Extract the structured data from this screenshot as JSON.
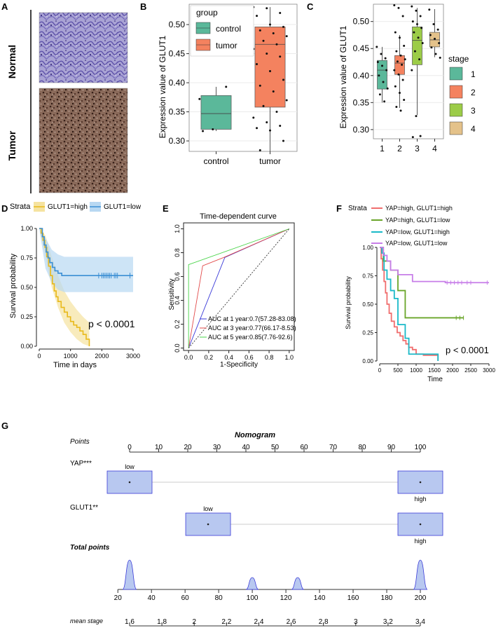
{
  "panel_letters": {
    "a": "A",
    "b": "B",
    "c": "C",
    "d": "D",
    "e": "E",
    "f": "F",
    "g": "G"
  },
  "panel_a": {
    "row_labels": [
      "Normal",
      "Tumor"
    ],
    "colors": {
      "normal": "#8a82c0",
      "tumor": "#6e5148"
    }
  },
  "chart_data": [
    {
      "id": "B",
      "type": "box",
      "ylabel": "Expression value of GLUT1",
      "categories": [
        "control",
        "tumor"
      ],
      "yticks": [
        0.3,
        0.35,
        0.4,
        0.45,
        0.5
      ],
      "ylim": [
        0.282,
        0.535
      ],
      "legend": {
        "title": "group",
        "entries": [
          "control",
          "tumor"
        ],
        "colors": [
          "#5bb89a",
          "#f4825f"
        ]
      },
      "boxes": [
        {
          "name": "control",
          "min": 0.317,
          "q1": 0.32,
          "median": 0.347,
          "q3": 0.378,
          "max": 0.393
        },
        {
          "name": "tumor",
          "min": 0.282,
          "q1": 0.358,
          "median": 0.466,
          "q3": 0.496,
          "max": 0.53
        }
      ],
      "points": {
        "control": [
          0.372,
          0.32,
          0.393,
          0.317
        ],
        "tumor": [
          0.53,
          0.528,
          0.52,
          0.515,
          0.5,
          0.496,
          0.49,
          0.485,
          0.48,
          0.472,
          0.466,
          0.458,
          0.45,
          0.445,
          0.432,
          0.42,
          0.405,
          0.395,
          0.385,
          0.37,
          0.36,
          0.35,
          0.34,
          0.332,
          0.326,
          0.322,
          0.318,
          0.3,
          0.284
        ]
      }
    },
    {
      "id": "C",
      "type": "box",
      "ylabel": "Expression value of GLUT1",
      "categories": [
        "1",
        "2",
        "3",
        "4"
      ],
      "yticks": [
        0.3,
        0.35,
        0.4,
        0.45,
        0.5
      ],
      "ylim": [
        0.283,
        0.532
      ],
      "legend": {
        "title": "stage",
        "entries": [
          "1",
          "2",
          "3",
          "4"
        ],
        "colors": [
          "#5bb89a",
          "#f4825f",
          "#9ccc48",
          "#e4c28a"
        ]
      },
      "boxes": [
        {
          "name": "1",
          "min": 0.35,
          "q1": 0.375,
          "median": 0.41,
          "q3": 0.428,
          "max": 0.453
        },
        {
          "name": "2",
          "min": 0.34,
          "q1": 0.402,
          "median": 0.423,
          "q3": 0.437,
          "max": 0.475
        },
        {
          "name": "3",
          "min": 0.327,
          "q1": 0.42,
          "median": 0.465,
          "q3": 0.49,
          "max": 0.525
        },
        {
          "name": "4",
          "min": 0.434,
          "q1": 0.453,
          "median": 0.466,
          "q3": 0.48,
          "max": 0.523
        }
      ],
      "points": {
        "1": [
          0.453,
          0.44,
          0.432,
          0.425,
          0.418,
          0.41,
          0.4,
          0.388,
          0.376,
          0.365,
          0.352
        ],
        "2": [
          0.53,
          0.525,
          0.51,
          0.48,
          0.47,
          0.455,
          0.445,
          0.437,
          0.43,
          0.426,
          0.42,
          0.41,
          0.402,
          0.392,
          0.38,
          0.368,
          0.355,
          0.342,
          0.335
        ],
        "3": [
          0.528,
          0.52,
          0.51,
          0.5,
          0.495,
          0.488,
          0.48,
          0.47,
          0.46,
          0.445,
          0.43,
          0.41,
          0.325,
          0.288,
          0.286
        ],
        "4": [
          0.522,
          0.495,
          0.485,
          0.475,
          0.468,
          0.46,
          0.452,
          0.44,
          0.433
        ]
      }
    },
    {
      "id": "D",
      "type": "line",
      "title": "",
      "xlabel": "Time in days",
      "ylabel": "Survival probability",
      "xlim": [
        0,
        3000
      ],
      "ylim": [
        0,
        1
      ],
      "xticks": [
        0,
        1000,
        2000,
        3000
      ],
      "yticks": [
        0.0,
        0.25,
        0.5,
        0.75,
        1.0
      ],
      "ytick_labels": [
        "0.00",
        "0.25",
        "0.50",
        "0.75",
        "1.00"
      ],
      "legend": {
        "title": "Strata",
        "entries": [
          "GLUT1=high",
          "GLUT1=low"
        ],
        "colors": [
          "#e8b91a",
          "#3b8fd4"
        ],
        "fill": [
          "#f5e3a0",
          "#b8d8f2"
        ]
      },
      "annotation": "p < 0.0001",
      "series": [
        {
          "name": "GLUT1=high",
          "x": [
            0,
            60,
            120,
            180,
            240,
            300,
            360,
            420,
            480,
            540,
            600,
            700,
            800,
            900,
            1000,
            1100,
            1200,
            1300,
            1400,
            1500,
            1600
          ],
          "y": [
            1.0,
            0.96,
            0.9,
            0.84,
            0.76,
            0.68,
            0.6,
            0.53,
            0.47,
            0.42,
            0.38,
            0.33,
            0.29,
            0.25,
            0.21,
            0.18,
            0.16,
            0.13,
            0.1,
            0.06,
            0.0
          ]
        },
        {
          "name": "GLUT1=low",
          "x": [
            0,
            100,
            160,
            220,
            280,
            340,
            420,
            500,
            600,
            720,
            3000
          ],
          "y": [
            1.0,
            0.93,
            0.86,
            0.8,
            0.75,
            0.71,
            0.67,
            0.64,
            0.62,
            0.6,
            0.6
          ]
        }
      ],
      "bands": [
        {
          "x": [
            0,
            200,
            400,
            600,
            800,
            1000,
            1200,
            1400,
            1600
          ],
          "lo": [
            1.0,
            0.76,
            0.5,
            0.33,
            0.2,
            0.12,
            0.06,
            0.02,
            0.0
          ],
          "hi": [
            1.0,
            0.94,
            0.76,
            0.6,
            0.47,
            0.38,
            0.31,
            0.25,
            0.2
          ]
        },
        {
          "x": [
            0,
            200,
            400,
            600,
            800,
            3000
          ],
          "lo": [
            1.0,
            0.66,
            0.54,
            0.48,
            0.46,
            0.46
          ],
          "hi": [
            1.0,
            0.92,
            0.82,
            0.78,
            0.76,
            0.76
          ]
        }
      ],
      "censor_x": [
        1900,
        2000,
        2050,
        2100,
        2150,
        2200,
        2250,
        2300,
        2400,
        2450,
        2500,
        2900
      ]
    },
    {
      "id": "E",
      "type": "line",
      "title": "Time-dependent curve",
      "xlabel": "1-Specificity",
      "ylabel": "Sensitivity",
      "xlim": [
        -0.05,
        1.05
      ],
      "ylim": [
        -0.02,
        1.05
      ],
      "xticks": [
        0.0,
        0.2,
        0.4,
        0.6,
        0.8,
        1.0
      ],
      "yticks": [
        0.0,
        0.2,
        0.4,
        0.6,
        0.8,
        1.0
      ],
      "legend": {
        "entries": [
          "AUC at 1 year:0.7(57.28-83.08)",
          "AUC at 3 year:0.77(66.17-8.53)",
          "AUC at 5 year:0.85(7.76-92.6)"
        ],
        "colors": [
          "#3a3ad8",
          "#e24a4a",
          "#4ad44a"
        ]
      },
      "series": [
        {
          "name": "AUC at 1 year",
          "x": [
            0,
            0.36,
            1.0
          ],
          "y": [
            0,
            0.76,
            1.0
          ]
        },
        {
          "name": "AUC at 3 year",
          "x": [
            0,
            0.14,
            0.35,
            1.0
          ],
          "y": [
            0,
            0.69,
            0.76,
            1.0
          ]
        },
        {
          "name": "AUC at 5 year",
          "x": [
            0,
            0,
            1.0
          ],
          "y": [
            0,
            0.7,
            1.0
          ]
        },
        {
          "name": "diagonal",
          "x": [
            0,
            1
          ],
          "y": [
            0,
            1
          ]
        }
      ]
    },
    {
      "id": "F",
      "type": "line",
      "xlabel": "Time",
      "ylabel": "Survival probability",
      "xlim": [
        0,
        3000
      ],
      "ylim": [
        0,
        1
      ],
      "xticks": [
        0,
        500,
        1000,
        1500,
        2000,
        2500,
        3000
      ],
      "yticks": [
        0.0,
        0.25,
        0.5,
        0.75,
        1.0
      ],
      "ytick_labels": [
        "0.00",
        "0.25",
        "0.50",
        "0.75",
        "1.00"
      ],
      "legend": {
        "title": "Strata",
        "entries": [
          "YAP=high, GLUT1=high",
          "YAP=high, GLUT1=low",
          "YAP=low, GLUT1=high",
          "YAP=low, GLUT1=low"
        ],
        "colors": [
          "#f06e6e",
          "#6aa52a",
          "#1ab9c8",
          "#c77ee8"
        ]
      },
      "annotation": "p < 0.0001",
      "series": [
        {
          "name": "YAP=high, GLUT1=high",
          "x": [
            0,
            40,
            80,
            120,
            160,
            200,
            260,
            320,
            400,
            480,
            560,
            640,
            720,
            800,
            900,
            1000,
            1200,
            1400,
            1600
          ],
          "y": [
            1.0,
            0.9,
            0.8,
            0.7,
            0.6,
            0.5,
            0.42,
            0.35,
            0.3,
            0.25,
            0.22,
            0.18,
            0.15,
            0.12,
            0.1,
            0.06,
            0.05,
            0.05,
            0.0
          ]
        },
        {
          "name": "YAP=high, GLUT1=low",
          "x": [
            0,
            100,
            200,
            300,
            400,
            500,
            650,
            700,
            800,
            2300
          ],
          "y": [
            1.0,
            0.88,
            0.88,
            0.8,
            0.8,
            0.62,
            0.62,
            0.38,
            0.38,
            0.38
          ]
        },
        {
          "name": "YAP=low, GLUT1=high",
          "x": [
            0,
            60,
            120,
            200,
            300,
            400,
            500,
            700,
            800,
            1500,
            1600
          ],
          "y": [
            1.0,
            0.95,
            0.8,
            0.72,
            0.62,
            0.55,
            0.32,
            0.2,
            0.06,
            0.06,
            0.0
          ]
        },
        {
          "name": "YAP=low, GLUT1=low",
          "x": [
            0,
            100,
            200,
            300,
            500,
            700,
            900,
            1800,
            3000
          ],
          "y": [
            1.0,
            0.93,
            0.88,
            0.8,
            0.76,
            0.76,
            0.7,
            0.69,
            0.69
          ]
        }
      ]
    },
    {
      "id": "G",
      "type": "nomogram",
      "title": "Nomogram",
      "rows": {
        "points": "Points",
        "yap": "YAP***",
        "glut1": "GLUT1**",
        "total": "Total points",
        "mean_stage": "mean stage"
      },
      "points_ticks": [
        0,
        10,
        20,
        30,
        40,
        50,
        60,
        70,
        80,
        90,
        100
      ],
      "points_tick_labels": [
        "0",
        "10",
        "20",
        "30",
        "40",
        "50",
        "60",
        "70",
        "80",
        "90",
        "100"
      ],
      "yap_levels": [
        {
          "label": "low",
          "points": 0
        },
        {
          "label": "high",
          "points": 100
        }
      ],
      "glut1_levels": [
        {
          "label": "low",
          "points": 27
        },
        {
          "label": "high",
          "points": 100
        }
      ],
      "total_ticks": [
        20,
        40,
        60,
        80,
        100,
        120,
        140,
        160,
        180,
        200
      ],
      "total_tick_labels": [
        "20",
        "40",
        "60",
        "80",
        "100",
        "120",
        "140",
        "160",
        "180",
        "200"
      ],
      "total_peaks": [
        27,
        100,
        127,
        200
      ],
      "stage_ticks": [
        1.6,
        1.8,
        2.0,
        2.2,
        2.4,
        2.6,
        2.8,
        3.0,
        3.2,
        3.4
      ],
      "stage_tick_labels": [
        "1.6",
        "1.8",
        "2",
        "2.2",
        "2.4",
        "2.6",
        "2.8",
        "3",
        "3.2",
        "3.4"
      ],
      "colors": {
        "box": "#b8c8f0",
        "box_stroke": "#3a3ad8"
      }
    }
  ]
}
